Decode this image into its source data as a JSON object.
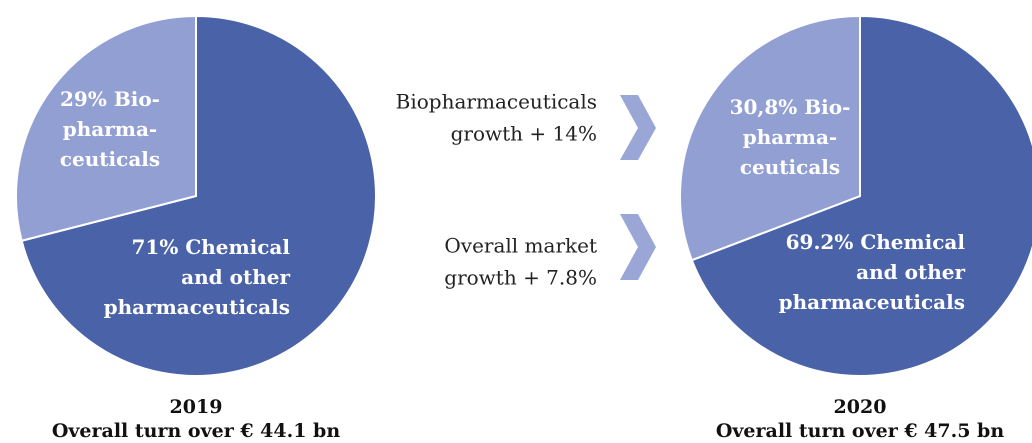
{
  "chart_data": [
    {
      "type": "pie",
      "title": "2019",
      "subtitle": "Overall turn over € 44.1 bn",
      "categories": [
        [
          "Chemical",
          "and other",
          "pharmaceuticals"
        ],
        [
          "Bio-",
          "pharma-",
          "ceuticals"
        ]
      ],
      "values": [
        71,
        29
      ],
      "value_labels": [
        "71%",
        "29%"
      ],
      "colors": [
        "#4a62a8",
        "#929fd2"
      ]
    },
    {
      "type": "pie",
      "title": "2020",
      "subtitle": "Overall turn over € 47.5 bn",
      "categories": [
        [
          "Chemical",
          "and other",
          "pharmaceuticals"
        ],
        [
          "Bio-",
          "pharma-",
          "ceuticals"
        ]
      ],
      "values": [
        69.2,
        30.8
      ],
      "value_labels": [
        "69.2%",
        "30,8%"
      ],
      "colors": [
        "#4a62a8",
        "#929fd2"
      ]
    }
  ],
  "annotations": [
    [
      "Biopharmaceuticals",
      "growth + 14%"
    ],
    [
      "Overall market",
      "growth + 7.8%"
    ]
  ]
}
